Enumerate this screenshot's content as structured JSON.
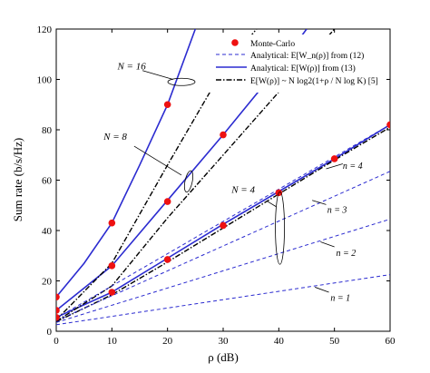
{
  "chart_data": {
    "type": "line",
    "xlabel": "ρ (dB)",
    "ylabel": "Sum rate (b/s/Hz)",
    "xlim": [
      0,
      60
    ],
    "ylim": [
      0,
      120
    ],
    "xticks": [
      0,
      10,
      20,
      30,
      40,
      50,
      60
    ],
    "yticks": [
      0,
      20,
      40,
      60,
      80,
      100,
      120
    ],
    "grid": false,
    "legend_position": "top-right",
    "colors": {
      "blue": "#2b2bd0",
      "red": "#ee1111",
      "black": "#000000"
    },
    "legend": [
      {
        "key": "mc",
        "label": "Monte-Carlo"
      },
      {
        "key": "a12",
        "label": "Analytical: E[W_n(ρ)] from (12)"
      },
      {
        "key": "a13",
        "label": "Analytical: E[W(ρ)] from (13)"
      },
      {
        "key": "approx",
        "label": "E[W(ρ)] ~ N log2(1+ρ / N log K) [5]"
      }
    ],
    "series": [
      {
        "style": "blue-solid",
        "x": [
          0,
          5,
          10,
          15,
          20,
          25
        ],
        "y": [
          13.6,
          27,
          43,
          66,
          90,
          120
        ]
      },
      {
        "style": "blue-solid",
        "x": [
          0,
          10,
          20,
          30,
          40,
          45
        ],
        "y": [
          8.3,
          26,
          52,
          78,
          105,
          120
        ]
      },
      {
        "style": "blue-solid",
        "x": [
          0,
          10,
          20,
          30,
          40,
          50,
          60
        ],
        "y": [
          5.5,
          15.5,
          29,
          42.5,
          55.5,
          68.5,
          82
        ]
      },
      {
        "style": "black-dashdot",
        "x": [
          0,
          10,
          20,
          30,
          36
        ],
        "y": [
          4.5,
          27,
          66,
          104,
          120
        ]
      },
      {
        "style": "black-dashdot",
        "x": [
          0,
          10,
          20,
          30,
          40,
          50
        ],
        "y": [
          4.0,
          18,
          45,
          70,
          95,
          120
        ]
      },
      {
        "style": "black-dashdot",
        "x": [
          0,
          10,
          20,
          30,
          40,
          50,
          60
        ],
        "y": [
          3.8,
          14.5,
          27.5,
          41,
          54.5,
          68,
          81
        ]
      },
      {
        "style": "blue-dashed",
        "x": [
          0,
          60
        ],
        "y": [
          5.2,
          82
        ]
      },
      {
        "style": "blue-dashed",
        "x": [
          0,
          60
        ],
        "y": [
          4.2,
          63.5
        ]
      },
      {
        "style": "blue-dashed",
        "x": [
          0,
          60
        ],
        "y": [
          3.5,
          44.5
        ]
      },
      {
        "style": "blue-dashed",
        "x": [
          0,
          60
        ],
        "y": [
          2.6,
          22.5
        ]
      }
    ],
    "markers": {
      "x": [
        0,
        10,
        20,
        0,
        10,
        20,
        30,
        0,
        10,
        20,
        30,
        40,
        50,
        60
      ],
      "y": [
        13.6,
        43,
        90,
        8.3,
        26,
        51.5,
        78,
        5.5,
        15.5,
        28.5,
        42,
        55,
        68.5,
        82
      ]
    },
    "annotations": {
      "N16": "N = 16",
      "N8": "N = 8",
      "N4": "N = 4",
      "n4": "n = 4",
      "n3": "n = 3",
      "n2": "n = 2",
      "n1": "n = 1"
    }
  }
}
